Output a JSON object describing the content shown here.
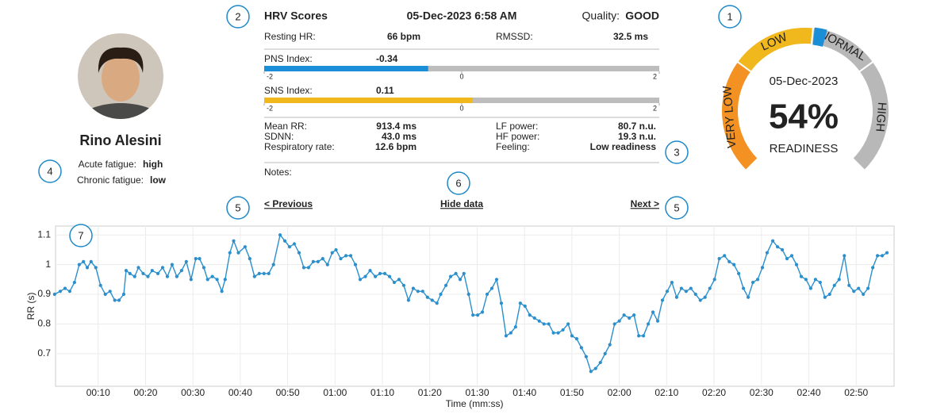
{
  "profile": {
    "name": "Rino Alesini",
    "acute_label": "Acute fatigue:",
    "acute": "high",
    "chronic_label": "Chronic fatigue:",
    "chronic": "low"
  },
  "hrv": {
    "title": "HRV Scores",
    "datetime": "05-Dec-2023 6:58 AM",
    "quality_label": "Quality:",
    "quality": "GOOD",
    "resting_hr_label": "Resting HR:",
    "resting_hr": "66 bpm",
    "rmssd_label": "RMSSD:",
    "rmssd": "32.5 ms",
    "pns": {
      "label": "PNS Index:",
      "value": -0.34,
      "color": "#1a8fd8",
      "scale": [
        -2,
        2
      ],
      "ticks": [
        -2,
        0,
        2
      ]
    },
    "sns": {
      "label": "SNS Index:",
      "value": 0.11,
      "color": "#f0b81c",
      "scale": [
        -2,
        2
      ],
      "ticks": [
        -2,
        0,
        2
      ]
    },
    "stats_left": [
      [
        "Mean RR:",
        "913.4 ms"
      ],
      [
        "SDNN:",
        "43.0 ms"
      ],
      [
        "Respiratory rate:",
        "12.6 bpm"
      ]
    ],
    "stats_right": [
      [
        "LF power:",
        "80.7 n.u."
      ],
      [
        "HF power:",
        "19.3 n.u."
      ],
      [
        "Feeling:",
        "Low readiness"
      ]
    ],
    "notes": "Notes:",
    "previous": "< Previous",
    "hide": "Hide data",
    "next": "Next >"
  },
  "gauge": {
    "date": "05-Dec-2023",
    "value": 54,
    "value_label": "54%",
    "label": "READINESS",
    "marker_color": "#1a8fd8",
    "zones": [
      {
        "label": "VERY LOW",
        "from": 0,
        "to": 30,
        "color": "#f39223"
      },
      {
        "label": "LOW",
        "from": 30,
        "to": 52,
        "color": "#f0b81c"
      },
      {
        "label": "NORMAL",
        "from": 52,
        "to": 70,
        "color": "#b8b8b8"
      },
      {
        "label": "HIGH",
        "from": 70,
        "to": 100,
        "color": "#b8b8b8"
      }
    ]
  },
  "callouts": [
    "1",
    "2",
    "3",
    "4",
    "5",
    "5",
    "6",
    "7"
  ],
  "chart_data": {
    "type": "line",
    "xlabel": "Time (mm:ss)",
    "ylabel": "RR (s)",
    "color": "#2a8fcc",
    "grid": true,
    "markers": true,
    "xlim": [
      1,
      178
    ],
    "ylim": [
      0.59,
      1.13
    ],
    "xticks": [
      {
        "value": 10,
        "label": "00:10"
      },
      {
        "value": 20,
        "label": "00:20"
      },
      {
        "value": 30,
        "label": "00:30"
      },
      {
        "value": 40,
        "label": "00:40"
      },
      {
        "value": 50,
        "label": "00:50"
      },
      {
        "value": 60,
        "label": "01:00"
      },
      {
        "value": 70,
        "label": "01:10"
      },
      {
        "value": 80,
        "label": "01:20"
      },
      {
        "value": 90,
        "label": "01:30"
      },
      {
        "value": 100,
        "label": "01:40"
      },
      {
        "value": 110,
        "label": "01:50"
      },
      {
        "value": 120,
        "label": "02:00"
      },
      {
        "value": 130,
        "label": "02:10"
      },
      {
        "value": 140,
        "label": "02:20"
      },
      {
        "value": 150,
        "label": "02:30"
      },
      {
        "value": 160,
        "label": "02:40"
      },
      {
        "value": 170,
        "label": "02:50"
      }
    ],
    "yticks": [
      0.7,
      0.8,
      0.9,
      1,
      1.1
    ],
    "x": [
      0.8,
      2.0,
      3.0,
      4.0,
      5.0,
      6.0,
      6.9,
      7.7,
      8.5,
      9.5,
      10.5,
      11.5,
      12.5,
      13.5,
      14.4,
      15.4,
      15.9,
      16.7,
      17.7,
      18.5,
      19.5,
      20.5,
      21.4,
      22.6,
      23.6,
      24.6,
      25.6,
      26.6,
      27.6,
      28.6,
      29.6,
      30.6,
      31.4,
      32.3,
      33.1,
      34.1,
      35.1,
      36.1,
      36.8,
      37.8,
      38.6,
      39.6,
      41.0,
      42.0,
      43.0,
      44.0,
      45.0,
      46.0,
      47.0,
      48.4,
      49.4,
      50.4,
      51.4,
      52.4,
      53.4,
      54.4,
      55.4,
      56.4,
      57.4,
      58.4,
      59.4,
      60.2,
      61.2,
      62.3,
      63.3,
      64.3,
      65.3,
      66.4,
      67.4,
      68.5,
      69.5,
      70.5,
      71.5,
      72.5,
      73.5,
      74.5,
      75.5,
      76.5,
      77.5,
      78.5,
      79.5,
      80.5,
      81.5,
      82.3,
      83.4,
      84.4,
      85.5,
      86.4,
      87.2,
      88.2,
      89.1,
      90.1,
      91.1,
      92.1,
      93.1,
      94.1,
      95.1,
      96.1,
      97.1,
      98.1,
      99.1,
      100.1,
      101.1,
      102.1,
      103.1,
      104.1,
      105.1,
      106.1,
      107.1,
      108.1,
      109.2,
      110.0,
      111.0,
      112.0,
      113.0,
      114.0,
      115.0,
      116.0,
      117.0,
      118.0,
      119.0,
      120.0,
      121.0,
      122.1,
      123.1,
      124.1,
      125.1,
      126.1,
      127.1,
      128.1,
      129.1,
      130.1,
      131.1,
      132.1,
      133.1,
      134.1,
      135.1,
      136.1,
      137.1,
      138.1,
      139.1,
      140.1,
      141.1,
      142.2,
      143.2,
      144.2,
      145.2,
      146.2,
      147.2,
      148.2,
      149.2,
      150.2,
      151.2,
      152.4,
      153.4,
      154.4,
      155.4,
      156.4,
      157.4,
      158.4,
      159.4,
      160.4,
      161.4,
      162.4,
      163.4,
      164.4,
      165.4,
      166.4,
      167.5,
      168.5,
      169.5,
      170.5,
      171.5,
      172.5,
      173.5,
      174.5,
      175.5,
      176.5
    ],
    "values": [
      0.9,
      0.91,
      0.92,
      0.91,
      0.94,
      1.0,
      1.01,
      0.99,
      1.01,
      0.99,
      0.93,
      0.9,
      0.91,
      0.88,
      0.88,
      0.9,
      0.98,
      0.97,
      0.96,
      0.99,
      0.97,
      0.96,
      0.98,
      0.97,
      0.99,
      0.96,
      1.0,
      0.96,
      0.98,
      1.01,
      0.95,
      1.02,
      1.02,
      0.99,
      0.95,
      0.96,
      0.95,
      0.91,
      0.95,
      1.04,
      1.08,
      1.04,
      1.06,
      1.02,
      0.96,
      0.97,
      0.97,
      0.97,
      1.0,
      1.1,
      1.08,
      1.06,
      1.07,
      1.04,
      0.99,
      0.99,
      1.01,
      1.01,
      1.02,
      1.0,
      1.04,
      1.05,
      1.02,
      1.03,
      1.03,
      1.0,
      0.95,
      0.96,
      0.98,
      0.96,
      0.97,
      0.97,
      0.96,
      0.94,
      0.95,
      0.93,
      0.88,
      0.92,
      0.91,
      0.91,
      0.89,
      0.88,
      0.87,
      0.9,
      0.93,
      0.96,
      0.97,
      0.95,
      0.97,
      0.9,
      0.83,
      0.83,
      0.84,
      0.9,
      0.92,
      0.95,
      0.87,
      0.76,
      0.77,
      0.79,
      0.87,
      0.86,
      0.83,
      0.82,
      0.81,
      0.8,
      0.8,
      0.77,
      0.77,
      0.78,
      0.8,
      0.76,
      0.75,
      0.72,
      0.69,
      0.64,
      0.65,
      0.67,
      0.7,
      0.73,
      0.8,
      0.81,
      0.83,
      0.82,
      0.83,
      0.76,
      0.76,
      0.8,
      0.84,
      0.81,
      0.88,
      0.91,
      0.94,
      0.89,
      0.92,
      0.91,
      0.92,
      0.9,
      0.88,
      0.89,
      0.92,
      0.95,
      1.02,
      1.03,
      1.01,
      1.0,
      0.97,
      0.92,
      0.89,
      0.94,
      0.95,
      0.99,
      1.04,
      1.08,
      1.06,
      1.05,
      1.02,
      1.03,
      1.0,
      0.96,
      0.95,
      0.92,
      0.95,
      0.94,
      0.89,
      0.9,
      0.93,
      0.95,
      1.03,
      0.93,
      0.91,
      0.92,
      0.9,
      0.92,
      0.99,
      1.03,
      1.03,
      1.04
    ]
  }
}
